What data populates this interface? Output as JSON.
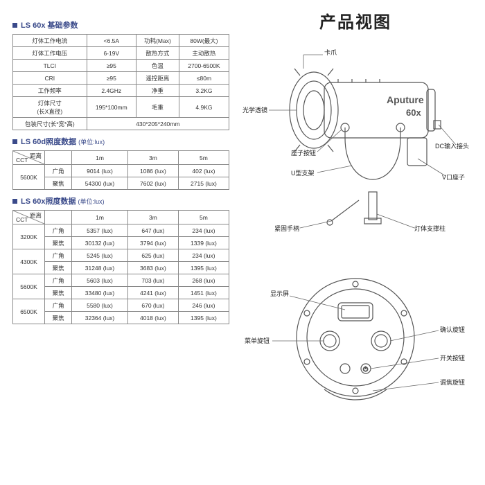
{
  "title_main": "产品视图",
  "sections": {
    "spec_title": "LS 60x 基础参数",
    "lux60d_title": "LS 60d照度数据",
    "lux60x_title": "LS 60x照度数据",
    "lux_unit": "(单位:lux)"
  },
  "spec_table": {
    "rows": [
      [
        "灯体工作电流",
        "<6.5A",
        "功耗(Max)",
        "80W(最大)"
      ],
      [
        "灯体工作电压",
        "6-19V",
        "散热方式",
        "主动散热"
      ],
      [
        "TLCI",
        "≥95",
        "色温",
        "2700-6500K"
      ],
      [
        "CRI",
        "≥95",
        "遥控距离",
        "≤80m"
      ],
      [
        "工作频率",
        "2.4GHz",
        "净重",
        "3.2KG"
      ],
      [
        "灯体尺寸\n(长X直径)",
        "195*100mm",
        "毛重",
        "4.9KG"
      ],
      [
        "包装尺寸(长*宽*高)",
        "430*205*240mm",
        "",
        ""
      ]
    ]
  },
  "lux60d": {
    "header_diag_top": "距离",
    "header_diag_bot": "CCT",
    "distances": [
      "1m",
      "3m",
      "5m"
    ],
    "rows": [
      {
        "cct": "5600K",
        "mode": "广角",
        "vals": [
          "9014 (lux)",
          "1086 (lux)",
          "402 (lux)"
        ]
      },
      {
        "cct": "",
        "mode": "聚焦",
        "vals": [
          "54300 (lux)",
          "7602 (lux)",
          "2715 (lux)"
        ]
      }
    ]
  },
  "lux60x": {
    "header_diag_top": "距离",
    "header_diag_bot": "CCT",
    "distances": [
      "1m",
      "3m",
      "5m"
    ],
    "groups": [
      {
        "cct": "3200K",
        "rows": [
          {
            "mode": "广角",
            "vals": [
              "5357 (lux)",
              "647 (lux)",
              "234 (lux)"
            ]
          },
          {
            "mode": "聚焦",
            "vals": [
              "30132 (lux)",
              "3794 (lux)",
              "1339 (lux)"
            ]
          }
        ]
      },
      {
        "cct": "4300K",
        "rows": [
          {
            "mode": "广角",
            "vals": [
              "5245 (lux)",
              "625 (lux)",
              "234 (lux)"
            ]
          },
          {
            "mode": "聚焦",
            "vals": [
              "31248 (lux)",
              "3683 (lux)",
              "1395 (lux)"
            ]
          }
        ]
      },
      {
        "cct": "5600K",
        "rows": [
          {
            "mode": "广角",
            "vals": [
              "5603 (lux)",
              "703 (lux)",
              "268 (lux)"
            ]
          },
          {
            "mode": "聚焦",
            "vals": [
              "33480 (lux)",
              "4241 (lux)",
              "1451 (lux)"
            ]
          }
        ]
      },
      {
        "cct": "6500K",
        "rows": [
          {
            "mode": "广角",
            "vals": [
              "5580 (lux)",
              "670 (lux)",
              "246 (lux)"
            ]
          },
          {
            "mode": "聚焦",
            "vals": [
              "32364 (lux)",
              "4018 (lux)",
              "1395 (lux)"
            ]
          }
        ]
      }
    ]
  },
  "sideview_labels": {
    "claw": "卡爪",
    "lens": "光学透镜",
    "bracket_btn": "座子按钮",
    "u_bracket": "U型支架",
    "handle": "紧固手柄",
    "support": "灯体支撑柱",
    "v_mount": "V口座子",
    "dc_in": "DC输入接头",
    "brand_text": "Aputure",
    "model_text": "60x"
  },
  "backview_labels": {
    "screen": "显示屏",
    "menu_knob": "菜单旋钮",
    "confirm_knob": "确认旋钮",
    "power_btn": "开关按钮",
    "focus_knob": "调焦旋钮"
  },
  "style": {
    "accent": "#3a4a8a",
    "border": "#888888",
    "text": "#333333",
    "bg": "#ffffff",
    "line": "#555555"
  }
}
